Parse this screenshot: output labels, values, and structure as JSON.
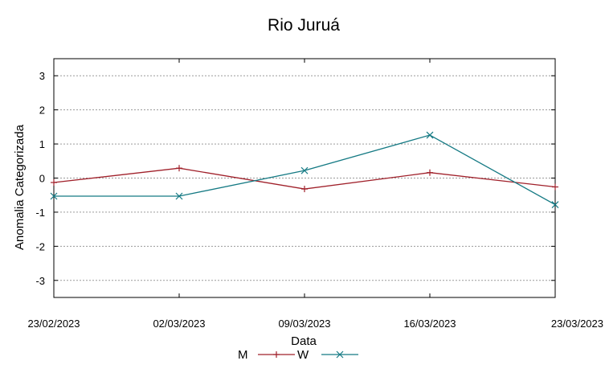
{
  "chart_data": {
    "type": "line",
    "title": "Rio Juruá",
    "xlabel": "Data",
    "ylabel": "Anomalia Categorizada",
    "x": [
      "23/02/2023",
      "02/03/2023",
      "09/03/2023",
      "16/03/2023",
      "23/03/2023"
    ],
    "ylim": [
      -3.5,
      3.5
    ],
    "yticks": [
      3,
      2,
      1,
      0,
      -1,
      -2,
      -3
    ],
    "yticklabels": [
      "3",
      "2",
      "1",
      "0",
      "-1",
      "-2",
      "-3"
    ],
    "grid": true,
    "legend_position": "bottom",
    "series": [
      {
        "name": "M",
        "values": [
          -0.13,
          0.29,
          -0.32,
          0.16,
          -0.26
        ],
        "color": "#a0202a",
        "marker": "plus"
      },
      {
        "name": "W",
        "values": [
          -0.53,
          -0.53,
          0.22,
          1.26,
          -0.78
        ],
        "color": "#157a84",
        "marker": "cross"
      }
    ]
  }
}
